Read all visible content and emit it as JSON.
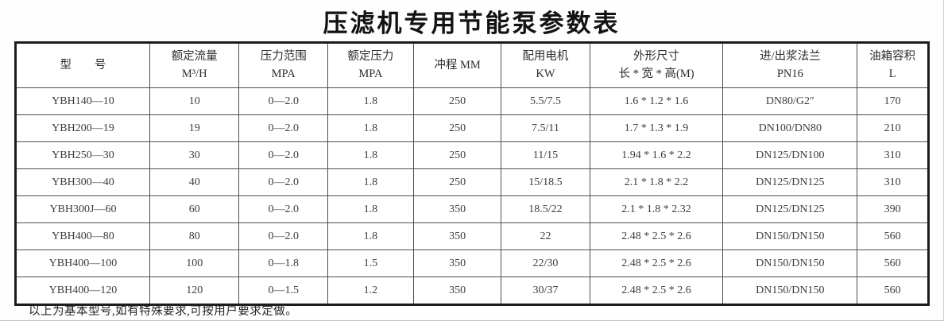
{
  "page": {
    "title": "压滤机专用节能泵参数表",
    "footnote": "以上为基本型号,如有特殊要求,可按用户要求定做。"
  },
  "table": {
    "columns": [
      {
        "line1": "型　　号",
        "line2": ""
      },
      {
        "line1": "额定流量",
        "line2": "M³/H"
      },
      {
        "line1": "压力范围",
        "line2": "MPA"
      },
      {
        "line1": "额定压力",
        "line2": "MPA"
      },
      {
        "line1": "冲程 MM",
        "line2": ""
      },
      {
        "line1": "配用电机",
        "line2": "KW"
      },
      {
        "line1": "外形尺寸",
        "line2": "长 * 宽 * 高(M)"
      },
      {
        "line1": "进/出浆法兰",
        "line2": "PN16"
      },
      {
        "line1": "油箱容积",
        "line2": "L"
      }
    ],
    "rows": [
      [
        "YBH140—10",
        "10",
        "0—2.0",
        "1.8",
        "250",
        "5.5/7.5",
        "1.6 * 1.2 * 1.6",
        "DN80/G2″",
        "170"
      ],
      [
        "YBH200—19",
        "19",
        "0—2.0",
        "1.8",
        "250",
        "7.5/11",
        "1.7 * 1.3 * 1.9",
        "DN100/DN80",
        "210"
      ],
      [
        "YBH250—30",
        "30",
        "0—2.0",
        "1.8",
        "250",
        "11/15",
        "1.94 * 1.6 * 2.2",
        "DN125/DN100",
        "310"
      ],
      [
        "YBH300—40",
        "40",
        "0—2.0",
        "1.8",
        "250",
        "15/18.5",
        "2.1 * 1.8 * 2.2",
        "DN125/DN125",
        "310"
      ],
      [
        "YBH300J—60",
        "60",
        "0—2.0",
        "1.8",
        "350",
        "18.5/22",
        "2.1 * 1.8 * 2.32",
        "DN125/DN125",
        "390"
      ],
      [
        "YBH400—80",
        "80",
        "0—2.0",
        "1.8",
        "350",
        "22",
        "2.48 * 2.5 * 2.6",
        "DN150/DN150",
        "560"
      ],
      [
        "YBH400—100",
        "100",
        "0—1.8",
        "1.5",
        "350",
        "22/30",
        "2.48 * 2.5 * 2.6",
        "DN150/DN150",
        "560"
      ],
      [
        "YBH400—120",
        "120",
        "0—1.5",
        "1.2",
        "350",
        "30/37",
        "2.48 * 2.5 * 2.6",
        "DN150/DN150",
        "560"
      ]
    ]
  }
}
